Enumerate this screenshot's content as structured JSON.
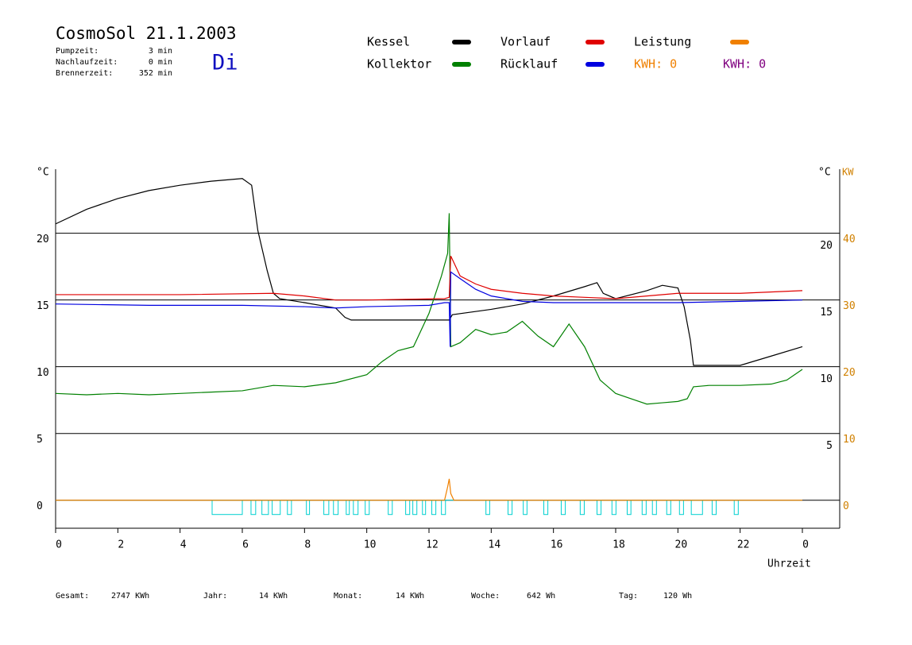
{
  "chart_data": {
    "type": "line",
    "title": "CosmoSol 21.1.2003",
    "weekday": "Di",
    "info": [
      {
        "label": "Pumpzeit:",
        "value": "3 min"
      },
      {
        "label": "Nachlaufzeit:",
        "value": "0 min"
      },
      {
        "label": "Brennerzeit:",
        "value": "352 min"
      }
    ],
    "ylabel": "°C",
    "y2label_c": "°C",
    "y2label": "KW",
    "xlabel": "Uhrzeit",
    "xlim": [
      0,
      25.2
    ],
    "xticks": [
      0,
      2,
      4,
      6,
      8,
      10,
      12,
      14,
      16,
      18,
      20,
      22,
      {
        "value": 24,
        "label": "0"
      }
    ],
    "ylim": [
      -2.1,
      24.8
    ],
    "yticks": [
      0,
      5,
      10,
      15,
      20
    ],
    "yticks_right": [
      5,
      10,
      15,
      20
    ],
    "y2lim": [
      -4.2,
      49.6
    ],
    "y2ticks": [
      0,
      10,
      20,
      30,
      40
    ],
    "grid": true,
    "series": [
      {
        "name": "Kessel",
        "color": "#000000",
        "x": [
          0,
          1,
          2,
          3,
          4,
          5,
          6,
          6.3,
          6.5,
          6.8,
          7,
          7.2,
          8,
          9,
          9.3,
          9.5,
          12.65,
          12.75,
          14,
          15,
          16,
          17,
          17.4,
          17.6,
          18,
          19,
          19.5,
          20,
          20.2,
          20.4,
          20.5,
          22,
          23,
          24
        ],
        "values": [
          20.7,
          21.8,
          22.6,
          23.2,
          23.6,
          23.9,
          24.1,
          23.6,
          20.2,
          17.2,
          15.5,
          15.1,
          14.8,
          14.4,
          13.7,
          13.5,
          13.5,
          13.9,
          14.3,
          14.7,
          15.3,
          16.0,
          16.3,
          15.5,
          15.1,
          15.7,
          16.1,
          15.9,
          14.5,
          12.0,
          10.1,
          10.1,
          10.8,
          11.5
        ]
      },
      {
        "name": "Kollektor",
        "color": "#008000",
        "x": [
          0,
          1,
          2,
          3,
          4,
          5,
          6,
          7,
          8,
          9,
          10,
          10.5,
          11,
          11.5,
          12,
          12.4,
          12.6,
          12.65,
          12.7,
          12.8,
          13,
          13.5,
          14,
          14.5,
          15,
          15.5,
          16,
          16.5,
          17,
          17.5,
          18,
          18.5,
          19,
          19.5,
          20,
          20.3,
          20.5,
          21,
          22,
          23,
          23.5,
          24
        ],
        "values": [
          8.0,
          7.9,
          8.0,
          7.9,
          8.0,
          8.1,
          8.2,
          8.6,
          8.5,
          8.8,
          9.4,
          10.4,
          11.2,
          11.5,
          14.0,
          16.8,
          18.5,
          21.5,
          11.5,
          11.6,
          11.8,
          12.8,
          12.4,
          12.6,
          13.4,
          12.3,
          11.5,
          13.2,
          11.5,
          9.0,
          8.0,
          7.6,
          7.2,
          7.3,
          7.4,
          7.6,
          8.5,
          8.6,
          8.6,
          8.7,
          9.0,
          9.8
        ]
      },
      {
        "name": "Vorlauf",
        "color": "#e00000",
        "x": [
          0,
          4,
          7,
          8,
          9,
          10,
          12.5,
          12.65,
          12.7,
          13,
          13.5,
          14,
          15,
          16,
          17,
          18,
          19,
          20,
          22,
          24
        ],
        "values": [
          15.4,
          15.4,
          15.5,
          15.3,
          15.0,
          15.0,
          15.1,
          15.2,
          18.3,
          16.8,
          16.2,
          15.8,
          15.5,
          15.3,
          15.2,
          15.1,
          15.3,
          15.5,
          15.5,
          15.7
        ]
      },
      {
        "name": "Rücklauf",
        "color": "#0000e0",
        "x": [
          0,
          3,
          6,
          8,
          9,
          10,
          12,
          12.5,
          12.65,
          12.68,
          12.7,
          13,
          13.5,
          14,
          15,
          16,
          18,
          20,
          22,
          24
        ],
        "values": [
          14.7,
          14.6,
          14.6,
          14.5,
          14.4,
          14.5,
          14.6,
          14.8,
          14.8,
          11.5,
          17.1,
          16.6,
          15.8,
          15.3,
          14.9,
          14.8,
          14.8,
          14.8,
          14.9,
          15.0
        ]
      },
      {
        "name": "Leistung",
        "color": "#f08000",
        "axis": "y2",
        "x": [
          0,
          12.5,
          12.6,
          12.65,
          12.7,
          12.8,
          24
        ],
        "values": [
          0,
          0,
          2.0,
          3.2,
          1.0,
          0,
          0
        ]
      }
    ],
    "kwh": [
      {
        "label": "KWH: 0",
        "color": "#f08000"
      },
      {
        "label": "KWH: 0",
        "color": "#800080"
      }
    ],
    "pump_color": "#00d0d0",
    "pump_intervals": [
      [
        5.03,
        6.0
      ],
      [
        6.28,
        6.43
      ],
      [
        6.63,
        6.84
      ],
      [
        6.96,
        7.22
      ],
      [
        7.45,
        7.58
      ],
      [
        8.06,
        8.16
      ],
      [
        8.62,
        8.78
      ],
      [
        8.93,
        9.08
      ],
      [
        9.34,
        9.44
      ],
      [
        9.57,
        9.72
      ],
      [
        9.95,
        10.08
      ],
      [
        10.69,
        10.82
      ],
      [
        11.25,
        11.38
      ],
      [
        11.48,
        11.61
      ],
      [
        11.79,
        11.89
      ],
      [
        12.09,
        12.22
      ],
      [
        12.4,
        12.53
      ],
      [
        13.83,
        13.95
      ],
      [
        14.54,
        14.67
      ],
      [
        15.03,
        15.15
      ],
      [
        15.69,
        15.82
      ],
      [
        16.25,
        16.38
      ],
      [
        16.86,
        16.99
      ],
      [
        17.4,
        17.53
      ],
      [
        17.88,
        18.01
      ],
      [
        18.37,
        18.49
      ],
      [
        18.85,
        18.98
      ],
      [
        19.18,
        19.31
      ],
      [
        19.64,
        19.77
      ],
      [
        20.05,
        20.18
      ],
      [
        20.43,
        20.79
      ],
      [
        21.1,
        21.23
      ],
      [
        21.81,
        21.94
      ]
    ],
    "footer": [
      {
        "label": "Gesamt:",
        "value": "2747 KWh"
      },
      {
        "label": "Jahr:",
        "value": "14 KWh"
      },
      {
        "label": "Monat:",
        "value": "14 KWh"
      },
      {
        "label": "Woche:",
        "value": "642 Wh"
      },
      {
        "label": "Tag:",
        "value": "120 Wh"
      }
    ]
  }
}
